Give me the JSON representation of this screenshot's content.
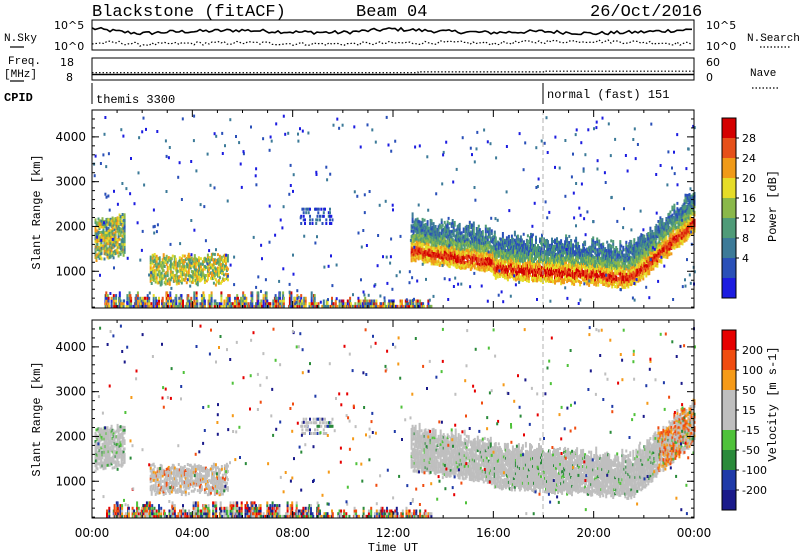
{
  "header": {
    "site": "Blackstone (fitACF)",
    "beam": "Beam 04",
    "date": "26/Oct/2016"
  },
  "colors": {
    "power_scale": [
      "#1c1ce0",
      "#2a50b8",
      "#3c7a98",
      "#4f9b78",
      "#8ab84a",
      "#e6dc28",
      "#f09a18",
      "#e6501a",
      "#d40000"
    ],
    "velocity_scale": [
      "#e60000",
      "#f04c10",
      "#f59a18",
      "#bfbfbf",
      "#bfbfbf",
      "#4fc23a",
      "#2a8a3a",
      "#1f3aa8",
      "#1a1a8a"
    ]
  },
  "chart_data": [
    {
      "type": "line",
      "panel": "N.Sky / N.Search",
      "labels_left": [
        "N.Sky"
      ],
      "labels_right": [
        "N.Search"
      ],
      "tick_labels_left": [
        "10^5",
        "10^0"
      ],
      "tick_labels_right": [
        "10^5",
        "10^0"
      ],
      "series": [
        {
          "name": "N.Sky",
          "style": "solid",
          "x": [
            0,
            1,
            2,
            3,
            4,
            6,
            8,
            10,
            12,
            14,
            16,
            18,
            20,
            22,
            24
          ],
          "y_level": [
            0.72,
            0.62,
            0.55,
            0.6,
            0.62,
            0.66,
            0.6,
            0.58,
            0.7,
            0.62,
            0.58,
            0.62,
            0.55,
            0.6,
            0.68
          ]
        },
        {
          "name": "N.Search",
          "style": "dotted",
          "x": [
            0,
            1,
            2,
            3,
            4,
            6,
            8,
            10,
            12,
            14,
            16,
            18,
            20,
            22,
            24
          ],
          "y_level": [
            0.22,
            0.25,
            0.18,
            0.2,
            0.22,
            0.24,
            0.21,
            0.2,
            0.23,
            0.25,
            0.22,
            0.28,
            0.3,
            0.26,
            0.2
          ]
        }
      ]
    },
    {
      "type": "line",
      "panel": "Freq / Nave",
      "labels_left": [
        "Freq.",
        "[MHz]"
      ],
      "labels_right": [
        "Nave"
      ],
      "tick_labels_left": [
        "18",
        "8"
      ],
      "tick_labels_right": [
        "60",
        "0"
      ],
      "series": [
        {
          "name": "Freq",
          "style": "solid",
          "x": [
            0,
            24
          ],
          "y": [
            10.5,
            10.5
          ]
        },
        {
          "name": "Nave",
          "style": "dotted",
          "x": [
            0,
            13,
            13,
            18,
            18,
            24
          ],
          "y": [
            20,
            20,
            22,
            22,
            24,
            24
          ]
        }
      ]
    },
    {
      "type": "table",
      "panel": "CPID",
      "label": "CPID",
      "segments": [
        {
          "start_ut": 0,
          "text": "themis 3300"
        },
        {
          "start_ut": 18,
          "text": "normal (fast) 151"
        }
      ]
    },
    {
      "type": "heatmap",
      "panel": "power",
      "ylabel": "Slant Range [km]",
      "xlim": [
        0,
        24
      ],
      "ylim": [
        180,
        4600
      ],
      "yticks": [
        1000,
        2000,
        3000,
        4000
      ],
      "colorbar_label": "Power [dB]",
      "colorbar_ticks": [
        "28",
        "24",
        "20",
        "16",
        "12",
        "8",
        "4"
      ],
      "vline_ut": 18
    },
    {
      "type": "heatmap",
      "panel": "velocity",
      "ylabel": "Slant Range [km]",
      "xlim": [
        0,
        24
      ],
      "ylim": [
        180,
        4600
      ],
      "yticks": [
        1000,
        2000,
        3000,
        4000
      ],
      "colorbar_label": "Velocity [m s-1]",
      "colorbar_ticks": [
        "200",
        "100",
        "50",
        "15",
        "-15",
        "-50",
        "-100",
        "-200"
      ],
      "vline_ut": 18
    },
    {
      "type": "axis",
      "xlabel": "Time UT",
      "xticks": [
        "00:00",
        "04:00",
        "08:00",
        "12:00",
        "16:00",
        "20:00",
        "00:00"
      ],
      "xtick_values": [
        0,
        4,
        8,
        12,
        16,
        20,
        24
      ]
    }
  ]
}
